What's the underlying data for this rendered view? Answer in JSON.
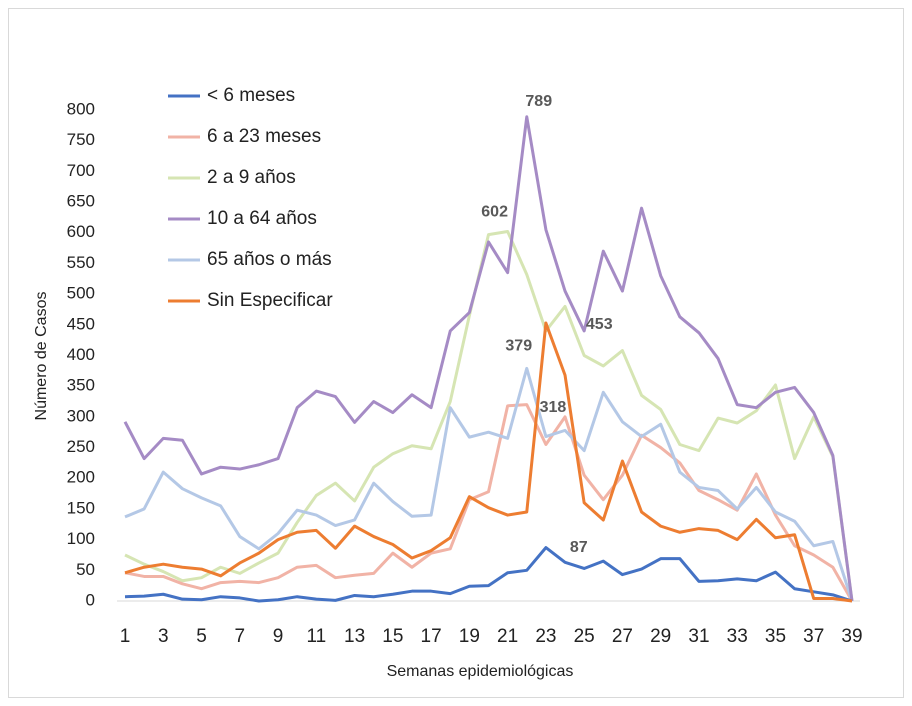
{
  "chart_data": {
    "type": "line",
    "x_label": "Semanas epidemiológicas",
    "y_label": "Número de Casos",
    "x": [
      1,
      2,
      3,
      4,
      5,
      6,
      7,
      8,
      9,
      10,
      11,
      12,
      13,
      14,
      15,
      16,
      17,
      18,
      19,
      20,
      21,
      22,
      23,
      24,
      25,
      26,
      27,
      28,
      29,
      30,
      31,
      32,
      33,
      34,
      35,
      36,
      37,
      38,
      39
    ],
    "xlim": [
      1,
      39
    ],
    "xticks": [
      1,
      3,
      5,
      7,
      9,
      11,
      13,
      15,
      17,
      19,
      21,
      23,
      25,
      27,
      29,
      31,
      33,
      35,
      37,
      39
    ],
    "ylim": [
      0,
      800
    ],
    "yticks": [
      0,
      50,
      100,
      150,
      200,
      250,
      300,
      350,
      400,
      450,
      500,
      550,
      600,
      650,
      700,
      750,
      800
    ],
    "series": [
      {
        "name": "< 6 meses",
        "color": "#4472c4",
        "values": [
          7,
          8,
          11,
          3,
          2,
          7,
          5,
          0,
          2,
          7,
          3,
          1,
          9,
          7,
          11,
          16,
          16,
          12,
          24,
          25,
          46,
          50,
          87,
          63,
          53,
          65,
          43,
          52,
          69,
          69,
          32,
          33,
          36,
          33,
          47,
          20,
          15,
          10,
          0
        ],
        "value_labels": [
          null,
          null,
          null,
          null,
          null,
          null,
          null,
          null,
          null,
          null,
          null,
          null,
          null,
          null,
          null,
          null,
          null,
          null,
          null,
          null,
          null,
          null,
          "87",
          null,
          null,
          null,
          null,
          null,
          null,
          null,
          null,
          null,
          null,
          null,
          null,
          null,
          null,
          null,
          null
        ]
      },
      {
        "name": "6 a 23 meses",
        "color": "#f1b3a6",
        "values": [
          46,
          40,
          40,
          28,
          20,
          30,
          32,
          30,
          38,
          55,
          58,
          38,
          42,
          45,
          78,
          55,
          78,
          85,
          165,
          178,
          318,
          320,
          255,
          300,
          205,
          165,
          205,
          270,
          250,
          225,
          180,
          165,
          148,
          207,
          140,
          90,
          75,
          55,
          0
        ],
        "value_labels": [
          null,
          null,
          null,
          null,
          null,
          null,
          null,
          null,
          null,
          null,
          null,
          null,
          null,
          null,
          null,
          null,
          null,
          null,
          null,
          null,
          "318",
          null,
          null,
          null,
          null,
          null,
          null,
          null,
          null,
          null,
          null,
          null,
          null,
          null,
          null,
          null,
          null,
          null,
          null
        ]
      },
      {
        "name": "2 a 9 años",
        "color": "#d6e5b3",
        "values": [
          75,
          60,
          48,
          33,
          38,
          55,
          45,
          62,
          78,
          128,
          172,
          192,
          163,
          218,
          240,
          253,
          248,
          325,
          465,
          597,
          602,
          532,
          440,
          480,
          400,
          383,
          408,
          335,
          312,
          255,
          245,
          298,
          290,
          310,
          352,
          232,
          300,
          235,
          0
        ],
        "value_labels": [
          null,
          null,
          null,
          null,
          null,
          null,
          null,
          null,
          null,
          null,
          null,
          null,
          null,
          null,
          null,
          null,
          null,
          null,
          null,
          null,
          "602",
          null,
          null,
          null,
          null,
          null,
          null,
          null,
          null,
          null,
          null,
          null,
          null,
          null,
          null,
          null,
          null,
          null,
          null
        ]
      },
      {
        "name": "10 a 64 años",
        "color": "#a58bc5",
        "values": [
          292,
          232,
          265,
          262,
          207,
          218,
          215,
          222,
          232,
          315,
          342,
          333,
          291,
          325,
          307,
          336,
          315,
          440,
          470,
          585,
          535,
          789,
          605,
          505,
          440,
          570,
          505,
          640,
          530,
          463,
          437,
          395,
          320,
          315,
          340,
          348,
          307,
          237,
          0
        ],
        "value_labels": [
          null,
          null,
          null,
          null,
          null,
          null,
          null,
          null,
          null,
          null,
          null,
          null,
          null,
          null,
          null,
          null,
          null,
          null,
          null,
          null,
          null,
          "789",
          null,
          null,
          null,
          null,
          null,
          null,
          null,
          null,
          null,
          null,
          null,
          null,
          null,
          null,
          null,
          null,
          null
        ]
      },
      {
        "name": " 65 años o más",
        "color": "#b4c8e6",
        "values": [
          137,
          150,
          210,
          183,
          168,
          155,
          105,
          85,
          110,
          148,
          140,
          123,
          132,
          192,
          162,
          138,
          140,
          315,
          267,
          275,
          265,
          379,
          268,
          278,
          245,
          340,
          292,
          268,
          288,
          210,
          185,
          180,
          150,
          185,
          145,
          130,
          90,
          97,
          0
        ],
        "value_labels": [
          null,
          null,
          null,
          null,
          null,
          null,
          null,
          null,
          null,
          null,
          null,
          null,
          null,
          null,
          null,
          null,
          null,
          null,
          null,
          null,
          null,
          "379",
          null,
          null,
          null,
          null,
          null,
          null,
          null,
          null,
          null,
          null,
          null,
          null,
          null,
          null,
          null,
          null,
          null
        ]
      },
      {
        "name": "Sin Especificar",
        "color": "#ed7d31",
        "values": [
          46,
          55,
          60,
          55,
          52,
          41,
          62,
          78,
          100,
          112,
          115,
          86,
          122,
          105,
          92,
          70,
          82,
          103,
          170,
          152,
          140,
          145,
          453,
          368,
          160,
          132,
          228,
          145,
          122,
          112,
          118,
          115,
          100,
          133,
          103,
          108,
          4,
          4,
          0
        ],
        "value_labels": [
          null,
          null,
          null,
          null,
          null,
          null,
          null,
          null,
          null,
          null,
          null,
          null,
          null,
          null,
          null,
          null,
          null,
          null,
          null,
          null,
          null,
          null,
          "453",
          null,
          null,
          null,
          null,
          null,
          null,
          null,
          null,
          null,
          null,
          null,
          null,
          null,
          null,
          null,
          null
        ]
      }
    ]
  }
}
